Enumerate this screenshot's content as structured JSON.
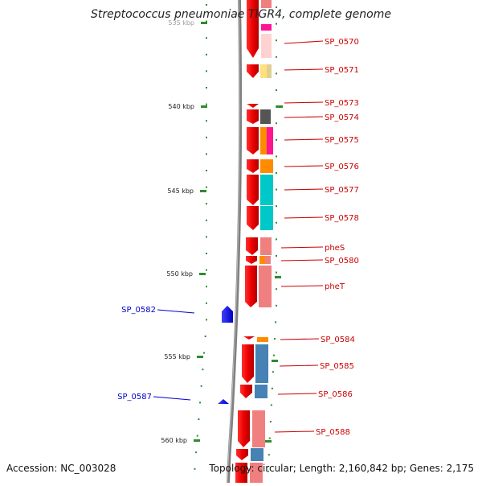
{
  "title": "Streptococcus pneumoniae TIGR4, complete genome",
  "footer": {
    "accession": "Accession: NC_003028",
    "stats": "Topology: circular; Length: 2,160,842 bp; Genes: 2,175"
  },
  "axis": {
    "unit": "kbp",
    "ticks": [
      {
        "label": "535 kbp",
        "value": 535
      },
      {
        "label": "540 kbp",
        "value": 540
      },
      {
        "label": "545 kbp",
        "value": 545
      },
      {
        "label": "550 kbp",
        "value": 550
      },
      {
        "label": "555 kbp",
        "value": 555
      },
      {
        "label": "560 kbp",
        "value": 560
      }
    ]
  },
  "genes_forward": [
    {
      "label": "SP_0570"
    },
    {
      "label": "SP_0571"
    },
    {
      "label": "SP_0573"
    },
    {
      "label": "SP_0574"
    },
    {
      "label": "SP_0575"
    },
    {
      "label": "SP_0576"
    },
    {
      "label": "SP_0577"
    },
    {
      "label": "SP_0578"
    },
    {
      "label": "pheS"
    },
    {
      "label": "SP_0580"
    },
    {
      "label": "pheT"
    },
    {
      "label": "SP_0584"
    },
    {
      "label": "SP_0585"
    },
    {
      "label": "SP_0586"
    },
    {
      "label": "SP_0588"
    }
  ],
  "genes_reverse": [
    {
      "label": "SP_0582"
    },
    {
      "label": "SP_0587"
    }
  ],
  "colors": {
    "forward_gene": "#ff0000",
    "reverse_gene": "#0000ff",
    "backbone": "#808080",
    "tick": "#2e8b2e",
    "label_forward": "#cc0000",
    "label_reverse": "#0000cc"
  }
}
